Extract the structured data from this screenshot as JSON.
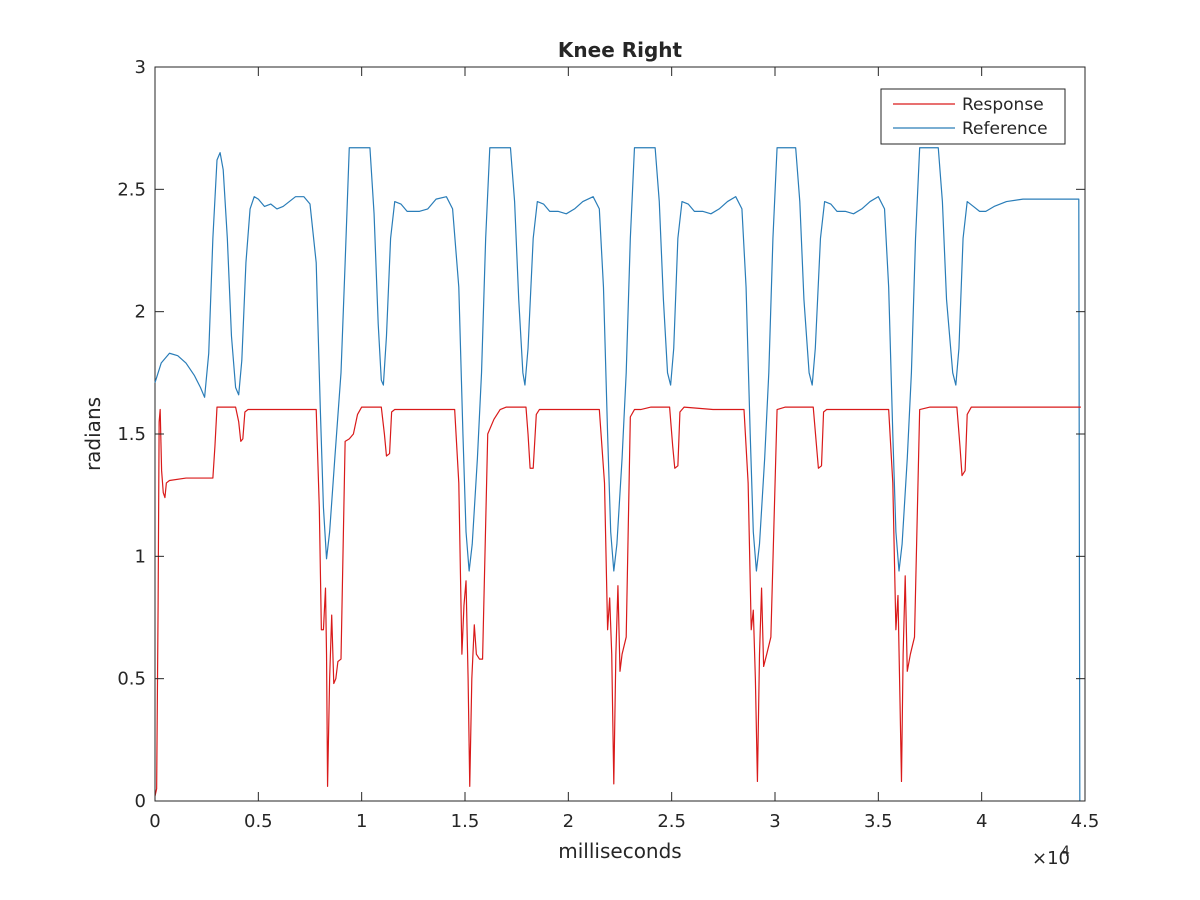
{
  "chart_data": {
    "type": "line",
    "title": "Knee Right",
    "xlabel": "milliseconds",
    "ylabel": "radians",
    "xlim": [
      0,
      45000
    ],
    "ylim": [
      0,
      3
    ],
    "x_ticks": [
      0,
      5000,
      10000,
      15000,
      20000,
      25000,
      30000,
      35000,
      40000,
      45000
    ],
    "x_tick_labels": [
      "0",
      "0.5",
      "1",
      "1.5",
      "2",
      "2.5",
      "3",
      "3.5",
      "4",
      "4.5"
    ],
    "x_exponent_label": "×10",
    "x_exponent_power": "4",
    "y_ticks": [
      0,
      0.5,
      1,
      1.5,
      2,
      2.5,
      3
    ],
    "y_tick_labels": [
      "0",
      "0.5",
      "1",
      "1.5",
      "2",
      "2.5",
      "3"
    ],
    "grid": false,
    "legend": {
      "position": "top-right"
    },
    "series": [
      {
        "name": "Response",
        "color": "#d91a1a",
        "points": [
          [
            0,
            0.02
          ],
          [
            80,
            0.05
          ],
          [
            150,
            0.8
          ],
          [
            200,
            1.55
          ],
          [
            250,
            1.6
          ],
          [
            320,
            1.35
          ],
          [
            400,
            1.26
          ],
          [
            480,
            1.24
          ],
          [
            550,
            1.3
          ],
          [
            700,
            1.31
          ],
          [
            1500,
            1.32
          ],
          [
            2500,
            1.32
          ],
          [
            2800,
            1.32
          ],
          [
            2900,
            1.45
          ],
          [
            3000,
            1.61
          ],
          [
            3500,
            1.61
          ],
          [
            3900,
            1.61
          ],
          [
            4050,
            1.55
          ],
          [
            4150,
            1.47
          ],
          [
            4250,
            1.48
          ],
          [
            4350,
            1.59
          ],
          [
            4500,
            1.6
          ],
          [
            5500,
            1.6
          ],
          [
            7000,
            1.6
          ],
          [
            7800,
            1.6
          ],
          [
            7950,
            1.2
          ],
          [
            8050,
            0.7
          ],
          [
            8150,
            0.7
          ],
          [
            8250,
            0.87
          ],
          [
            8300,
            0.6
          ],
          [
            8350,
            0.06
          ],
          [
            8450,
            0.5
          ],
          [
            8550,
            0.76
          ],
          [
            8650,
            0.48
          ],
          [
            8750,
            0.5
          ],
          [
            8850,
            0.57
          ],
          [
            9000,
            0.58
          ],
          [
            9200,
            1.47
          ],
          [
            9400,
            1.48
          ],
          [
            9600,
            1.5
          ],
          [
            9800,
            1.58
          ],
          [
            10000,
            1.61
          ],
          [
            10500,
            1.61
          ],
          [
            10950,
            1.61
          ],
          [
            11100,
            1.5
          ],
          [
            11200,
            1.41
          ],
          [
            11350,
            1.42
          ],
          [
            11450,
            1.59
          ],
          [
            11600,
            1.6
          ],
          [
            13000,
            1.6
          ],
          [
            14500,
            1.6
          ],
          [
            14700,
            1.3
          ],
          [
            14850,
            0.6
          ],
          [
            14950,
            0.8
          ],
          [
            15050,
            0.9
          ],
          [
            15150,
            0.5
          ],
          [
            15230,
            0.06
          ],
          [
            15330,
            0.5
          ],
          [
            15450,
            0.72
          ],
          [
            15550,
            0.6
          ],
          [
            15700,
            0.58
          ],
          [
            15850,
            0.58
          ],
          [
            16100,
            1.5
          ],
          [
            16400,
            1.56
          ],
          [
            16700,
            1.6
          ],
          [
            17000,
            1.61
          ],
          [
            17500,
            1.61
          ],
          [
            17950,
            1.61
          ],
          [
            18050,
            1.5
          ],
          [
            18150,
            1.36
          ],
          [
            18300,
            1.36
          ],
          [
            18450,
            1.58
          ],
          [
            18600,
            1.6
          ],
          [
            20000,
            1.6
          ],
          [
            21500,
            1.6
          ],
          [
            21750,
            1.3
          ],
          [
            21900,
            0.7
          ],
          [
            22000,
            0.83
          ],
          [
            22100,
            0.6
          ],
          [
            22200,
            0.07
          ],
          [
            22300,
            0.6
          ],
          [
            22400,
            0.88
          ],
          [
            22500,
            0.53
          ],
          [
            22600,
            0.6
          ],
          [
            22800,
            0.67
          ],
          [
            23000,
            1.57
          ],
          [
            23200,
            1.6
          ],
          [
            23500,
            1.6
          ],
          [
            24000,
            1.61
          ],
          [
            24900,
            1.61
          ],
          [
            25050,
            1.45
          ],
          [
            25150,
            1.36
          ],
          [
            25300,
            1.37
          ],
          [
            25400,
            1.59
          ],
          [
            25600,
            1.61
          ],
          [
            27000,
            1.6
          ],
          [
            28500,
            1.6
          ],
          [
            28700,
            1.3
          ],
          [
            28850,
            0.7
          ],
          [
            28950,
            0.78
          ],
          [
            29050,
            0.5
          ],
          [
            29150,
            0.08
          ],
          [
            29250,
            0.6
          ],
          [
            29350,
            0.87
          ],
          [
            29450,
            0.55
          ],
          [
            29600,
            0.6
          ],
          [
            29800,
            0.67
          ],
          [
            30100,
            1.6
          ],
          [
            30500,
            1.61
          ],
          [
            31500,
            1.61
          ],
          [
            31850,
            1.61
          ],
          [
            32000,
            1.46
          ],
          [
            32100,
            1.36
          ],
          [
            32250,
            1.37
          ],
          [
            32350,
            1.59
          ],
          [
            32500,
            1.6
          ],
          [
            34000,
            1.6
          ],
          [
            35500,
            1.6
          ],
          [
            35700,
            1.3
          ],
          [
            35850,
            0.7
          ],
          [
            35950,
            0.84
          ],
          [
            36050,
            0.4
          ],
          [
            36120,
            0.08
          ],
          [
            36200,
            0.6
          ],
          [
            36300,
            0.92
          ],
          [
            36400,
            0.53
          ],
          [
            36550,
            0.6
          ],
          [
            36750,
            0.67
          ],
          [
            37000,
            1.6
          ],
          [
            37500,
            1.61
          ],
          [
            38500,
            1.61
          ],
          [
            38800,
            1.61
          ],
          [
            38950,
            1.45
          ],
          [
            39050,
            1.33
          ],
          [
            39200,
            1.35
          ],
          [
            39300,
            1.58
          ],
          [
            39500,
            1.61
          ],
          [
            41000,
            1.61
          ],
          [
            43000,
            1.61
          ],
          [
            44800,
            1.61
          ]
        ]
      },
      {
        "name": "Reference",
        "color": "#2a7db8",
        "points": [
          [
            0,
            1.71
          ],
          [
            300,
            1.79
          ],
          [
            700,
            1.83
          ],
          [
            1100,
            1.82
          ],
          [
            1500,
            1.79
          ],
          [
            1900,
            1.74
          ],
          [
            2200,
            1.69
          ],
          [
            2400,
            1.65
          ],
          [
            2600,
            1.83
          ],
          [
            2800,
            2.3
          ],
          [
            3000,
            2.62
          ],
          [
            3150,
            2.65
          ],
          [
            3300,
            2.58
          ],
          [
            3500,
            2.3
          ],
          [
            3700,
            1.9
          ],
          [
            3900,
            1.69
          ],
          [
            4050,
            1.66
          ],
          [
            4200,
            1.8
          ],
          [
            4400,
            2.2
          ],
          [
            4600,
            2.42
          ],
          [
            4800,
            2.47
          ],
          [
            5000,
            2.46
          ],
          [
            5300,
            2.43
          ],
          [
            5600,
            2.44
          ],
          [
            5900,
            2.42
          ],
          [
            6200,
            2.43
          ],
          [
            6500,
            2.45
          ],
          [
            6800,
            2.47
          ],
          [
            7200,
            2.47
          ],
          [
            7500,
            2.44
          ],
          [
            7800,
            2.2
          ],
          [
            8000,
            1.6
          ],
          [
            8150,
            1.2
          ],
          [
            8300,
            0.99
          ],
          [
            8450,
            1.1
          ],
          [
            8700,
            1.4
          ],
          [
            9000,
            1.75
          ],
          [
            9200,
            2.2
          ],
          [
            9400,
            2.67
          ],
          [
            10400,
            2.67
          ],
          [
            10600,
            2.4
          ],
          [
            10800,
            1.95
          ],
          [
            10950,
            1.72
          ],
          [
            11050,
            1.7
          ],
          [
            11200,
            1.9
          ],
          [
            11400,
            2.3
          ],
          [
            11600,
            2.45
          ],
          [
            11900,
            2.44
          ],
          [
            12200,
            2.41
          ],
          [
            12500,
            2.41
          ],
          [
            12800,
            2.41
          ],
          [
            13200,
            2.42
          ],
          [
            13600,
            2.46
          ],
          [
            14100,
            2.47
          ],
          [
            14400,
            2.42
          ],
          [
            14700,
            2.1
          ],
          [
            14900,
            1.5
          ],
          [
            15050,
            1.1
          ],
          [
            15200,
            0.94
          ],
          [
            15350,
            1.05
          ],
          [
            15600,
            1.4
          ],
          [
            15800,
            1.75
          ],
          [
            16000,
            2.3
          ],
          [
            16200,
            2.67
          ],
          [
            17200,
            2.67
          ],
          [
            17400,
            2.45
          ],
          [
            17600,
            2.05
          ],
          [
            17800,
            1.75
          ],
          [
            17900,
            1.7
          ],
          [
            18050,
            1.85
          ],
          [
            18300,
            2.3
          ],
          [
            18500,
            2.45
          ],
          [
            18800,
            2.44
          ],
          [
            19100,
            2.41
          ],
          [
            19500,
            2.41
          ],
          [
            19900,
            2.4
          ],
          [
            20300,
            2.42
          ],
          [
            20700,
            2.45
          ],
          [
            21200,
            2.47
          ],
          [
            21500,
            2.42
          ],
          [
            21700,
            2.1
          ],
          [
            21900,
            1.5
          ],
          [
            22050,
            1.1
          ],
          [
            22200,
            0.94
          ],
          [
            22350,
            1.05
          ],
          [
            22600,
            1.4
          ],
          [
            22800,
            1.75
          ],
          [
            23000,
            2.3
          ],
          [
            23200,
            2.67
          ],
          [
            24200,
            2.67
          ],
          [
            24400,
            2.45
          ],
          [
            24600,
            2.05
          ],
          [
            24800,
            1.75
          ],
          [
            24950,
            1.7
          ],
          [
            25100,
            1.85
          ],
          [
            25300,
            2.3
          ],
          [
            25500,
            2.45
          ],
          [
            25800,
            2.44
          ],
          [
            26100,
            2.41
          ],
          [
            26500,
            2.41
          ],
          [
            26900,
            2.4
          ],
          [
            27300,
            2.42
          ],
          [
            27700,
            2.45
          ],
          [
            28100,
            2.47
          ],
          [
            28400,
            2.42
          ],
          [
            28600,
            2.1
          ],
          [
            28800,
            1.5
          ],
          [
            28950,
            1.1
          ],
          [
            29100,
            0.94
          ],
          [
            29250,
            1.05
          ],
          [
            29500,
            1.4
          ],
          [
            29700,
            1.75
          ],
          [
            29900,
            2.3
          ],
          [
            30100,
            2.67
          ],
          [
            31000,
            2.67
          ],
          [
            31200,
            2.45
          ],
          [
            31400,
            2.05
          ],
          [
            31650,
            1.75
          ],
          [
            31800,
            1.7
          ],
          [
            31950,
            1.85
          ],
          [
            32200,
            2.3
          ],
          [
            32400,
            2.45
          ],
          [
            32700,
            2.44
          ],
          [
            33000,
            2.41
          ],
          [
            33400,
            2.41
          ],
          [
            33800,
            2.4
          ],
          [
            34200,
            2.42
          ],
          [
            34600,
            2.45
          ],
          [
            35000,
            2.47
          ],
          [
            35300,
            2.42
          ],
          [
            35500,
            2.1
          ],
          [
            35700,
            1.5
          ],
          [
            35850,
            1.1
          ],
          [
            36000,
            0.94
          ],
          [
            36150,
            1.05
          ],
          [
            36400,
            1.4
          ],
          [
            36600,
            1.75
          ],
          [
            36800,
            2.3
          ],
          [
            37000,
            2.67
          ],
          [
            37900,
            2.67
          ],
          [
            38100,
            2.45
          ],
          [
            38300,
            2.05
          ],
          [
            38600,
            1.75
          ],
          [
            38750,
            1.7
          ],
          [
            38900,
            1.85
          ],
          [
            39100,
            2.3
          ],
          [
            39300,
            2.45
          ],
          [
            39600,
            2.43
          ],
          [
            39900,
            2.41
          ],
          [
            40200,
            2.41
          ],
          [
            40600,
            2.43
          ],
          [
            41200,
            2.45
          ],
          [
            42000,
            2.46
          ],
          [
            43500,
            2.46
          ],
          [
            44700,
            2.46
          ],
          [
            44750,
            0.0
          ]
        ]
      }
    ]
  }
}
